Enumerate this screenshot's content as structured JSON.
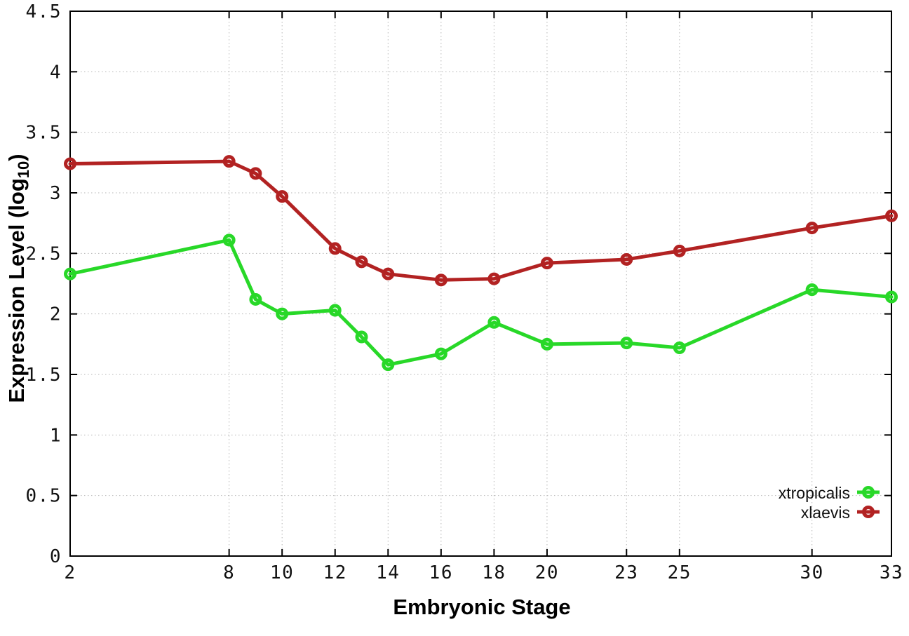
{
  "figure": {
    "background": "#ffffff",
    "xlabel": "Embryonic Stage",
    "ylabel": "Expression Level (log10)",
    "ylabel_prefix": "Expression Level (log",
    "ylabel_sub": "10",
    "ylabel_suffix": ")"
  },
  "legend": {
    "position": "bottom-right",
    "entries": [
      {
        "label": "xtropicalis",
        "color": "#28d828",
        "marker": "open-circle"
      },
      {
        "label": "xlaevis",
        "color": "#b22222",
        "marker": "open-circle"
      }
    ]
  },
  "colors": {
    "axis": "#000000",
    "grid": "#b5b5b5",
    "tick_text": "#111111",
    "xtropicalis": "#28d828",
    "xlaevis": "#b22222"
  },
  "chart_data": {
    "type": "line",
    "title": "",
    "xlabel": "Embryonic Stage",
    "ylabel": "Expression Level (log10)",
    "xlim": [
      2,
      33
    ],
    "ylim": [
      0,
      4.5
    ],
    "grid": true,
    "marker": "open-circle",
    "line_width": 5,
    "x": [
      2,
      8,
      9,
      10,
      12,
      13,
      14,
      16,
      18,
      20,
      23,
      25,
      30,
      33
    ],
    "series": [
      {
        "name": "xtropicalis",
        "color": "#28d828",
        "values": [
          2.33,
          2.61,
          2.12,
          2.0,
          2.03,
          1.81,
          1.58,
          1.67,
          1.93,
          1.75,
          1.76,
          1.72,
          2.2,
          2.14
        ]
      },
      {
        "name": "xlaevis",
        "color": "#b22222",
        "values": [
          3.24,
          3.26,
          3.16,
          2.97,
          2.54,
          2.43,
          2.33,
          2.28,
          2.29,
          2.42,
          2.45,
          2.52,
          2.71,
          2.81
        ]
      }
    ],
    "xticks": [
      "2",
      "8",
      "10",
      "12",
      "14",
      "16",
      "18",
      "20",
      "23",
      "25",
      "30",
      "33"
    ],
    "yticks": [
      "0",
      "0.5",
      "1",
      "1.5",
      "2",
      "2.5",
      "3",
      "3.5",
      "4",
      "4.5"
    ]
  }
}
